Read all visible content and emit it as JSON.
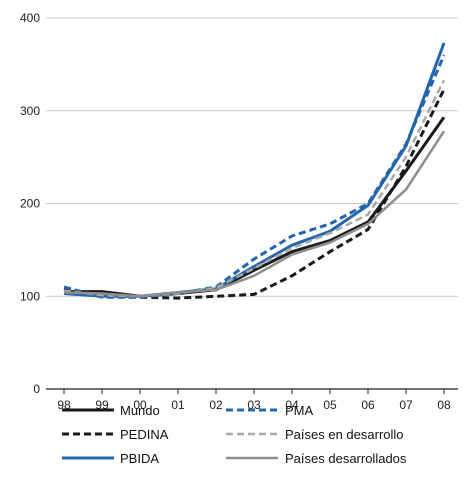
{
  "chart_data": {
    "type": "line",
    "x": [
      "98",
      "99",
      "00",
      "01",
      "02",
      "03",
      "04",
      "05",
      "06",
      "07",
      "08"
    ],
    "ylim": [
      0,
      400
    ],
    "yticks": [
      0,
      100,
      200,
      300,
      400
    ],
    "grid": "horizontal",
    "legend_position": "bottom",
    "series": [
      {
        "name": "Mundo",
        "color": "#1a1a1a",
        "style": "solid",
        "width": 3,
        "values": [
          105,
          105,
          100,
          103,
          107,
          128,
          148,
          160,
          180,
          235,
          293
        ]
      },
      {
        "name": "PEDINA",
        "color": "#1a1a1a",
        "style": "dashed",
        "width": 3,
        "values": [
          108,
          100,
          99,
          98,
          100,
          102,
          122,
          148,
          172,
          240,
          323
        ]
      },
      {
        "name": "PBIDA",
        "color": "#2466ad",
        "style": "solid",
        "width": 3,
        "values": [
          103,
          100,
          100,
          104,
          108,
          132,
          155,
          170,
          198,
          262,
          373
        ]
      },
      {
        "name": "PMA",
        "color": "#2466ad",
        "style": "dashed",
        "width": 3,
        "values": [
          110,
          99,
          99,
          103,
          110,
          140,
          165,
          178,
          200,
          264,
          360
        ]
      },
      {
        "name": "Países en desarrollo",
        "color": "#a8a8a8",
        "style": "dashed",
        "width": 2.5,
        "values": [
          106,
          101,
          100,
          103,
          109,
          130,
          152,
          168,
          188,
          250,
          333
        ]
      },
      {
        "name": "Países desarrollados",
        "color": "#8e8e8e",
        "style": "solid",
        "width": 2.5,
        "values": [
          104,
          103,
          100,
          104,
          107,
          122,
          145,
          158,
          178,
          215,
          278
        ]
      }
    ]
  }
}
